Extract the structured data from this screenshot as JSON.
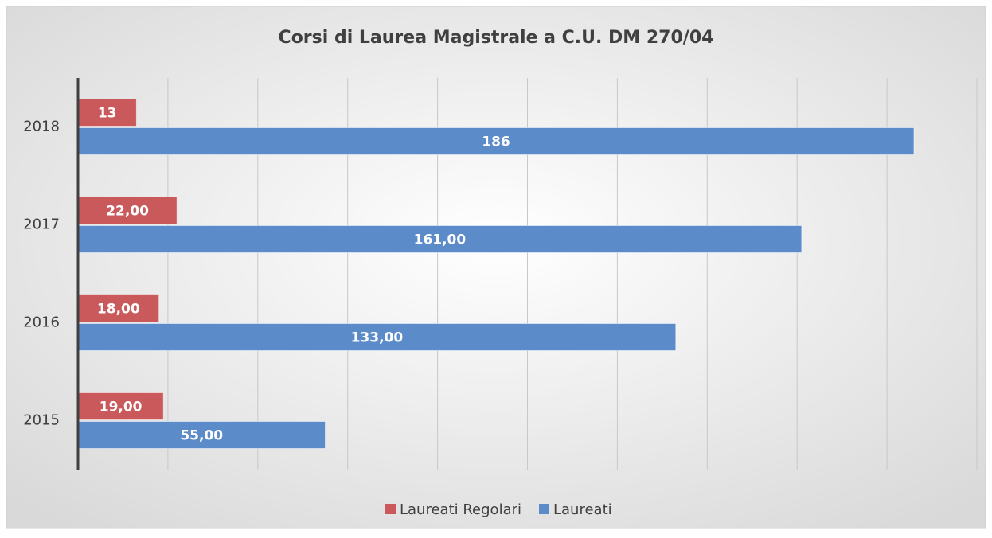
{
  "chart_data": {
    "type": "bar",
    "orientation": "horizontal",
    "title": "Corsi di Laurea Magistrale a C.U. DM 270/04",
    "categories": [
      "2015",
      "2016",
      "2017",
      "2018"
    ],
    "series": [
      {
        "name": "Laureati Regolari",
        "color": "#c9595a",
        "values": [
          19,
          18,
          22,
          13
        ],
        "value_labels": [
          "19,00",
          "18,00",
          "22,00",
          "13"
        ]
      },
      {
        "name": "Laureati",
        "color": "#5b8bc8",
        "values": [
          55,
          133,
          161,
          186
        ],
        "value_labels": [
          "55,00",
          "133,00",
          "161,00",
          "186"
        ]
      }
    ],
    "xlim": [
      0,
      200
    ],
    "xticks": [
      0,
      20,
      40,
      60,
      80,
      100,
      120,
      140,
      160,
      180,
      200
    ],
    "grid": true,
    "legend": "bottom"
  }
}
